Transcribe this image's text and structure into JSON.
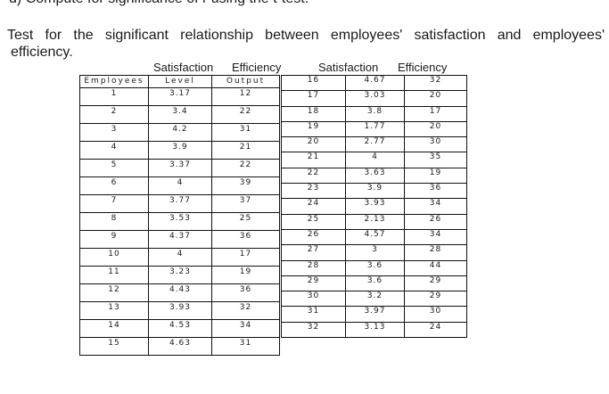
{
  "cut_line": "d)  Compute for significance of r using the t-test.",
  "question": {
    "line1": "Test for the significant relationship between employees' satisfaction and employees'",
    "line2": "efficiency."
  },
  "above_headers": {
    "satisfaction": "Satisfaction",
    "efficiency": "Efficiency"
  },
  "table_left": {
    "headers": [
      "Employees",
      "Level",
      "Output"
    ],
    "rows": [
      [
        "1",
        "3.17",
        "12"
      ],
      [
        "2",
        "3.4",
        "22"
      ],
      [
        "3",
        "4.2",
        "31"
      ],
      [
        "4",
        "3.9",
        "21"
      ],
      [
        "5",
        "3.37",
        "22"
      ],
      [
        "6",
        "4",
        "39"
      ],
      [
        "7",
        "3.77",
        "37"
      ],
      [
        "8",
        "3.53",
        "25"
      ],
      [
        "9",
        "4.37",
        "36"
      ],
      [
        "10",
        "4",
        "17"
      ],
      [
        "11",
        "3.23",
        "19"
      ],
      [
        "12",
        "4.43",
        "36"
      ],
      [
        "13",
        "3.93",
        "32"
      ],
      [
        "14",
        "4.53",
        "34"
      ],
      [
        "15",
        "4.63",
        "31"
      ]
    ]
  },
  "table_right": {
    "rows": [
      [
        "16",
        "4.67",
        "32"
      ],
      [
        "17",
        "3.03",
        "20"
      ],
      [
        "18",
        "3.8",
        "17"
      ],
      [
        "19",
        "1.77",
        "20"
      ],
      [
        "20",
        "2.77",
        "30"
      ],
      [
        "21",
        "4",
        "35"
      ],
      [
        "22",
        "3.63",
        "19"
      ],
      [
        "23",
        "3.9",
        "36"
      ],
      [
        "24",
        "3.93",
        "34"
      ],
      [
        "25",
        "2.13",
        "26"
      ],
      [
        "26",
        "4.57",
        "34"
      ],
      [
        "27",
        "3",
        "28"
      ],
      [
        "28",
        "3.6",
        "44"
      ],
      [
        "29",
        "3.6",
        "29"
      ],
      [
        "30",
        "3.2",
        "29"
      ],
      [
        "31",
        "3.97",
        "30"
      ],
      [
        "32",
        "3.13",
        "24"
      ]
    ]
  }
}
